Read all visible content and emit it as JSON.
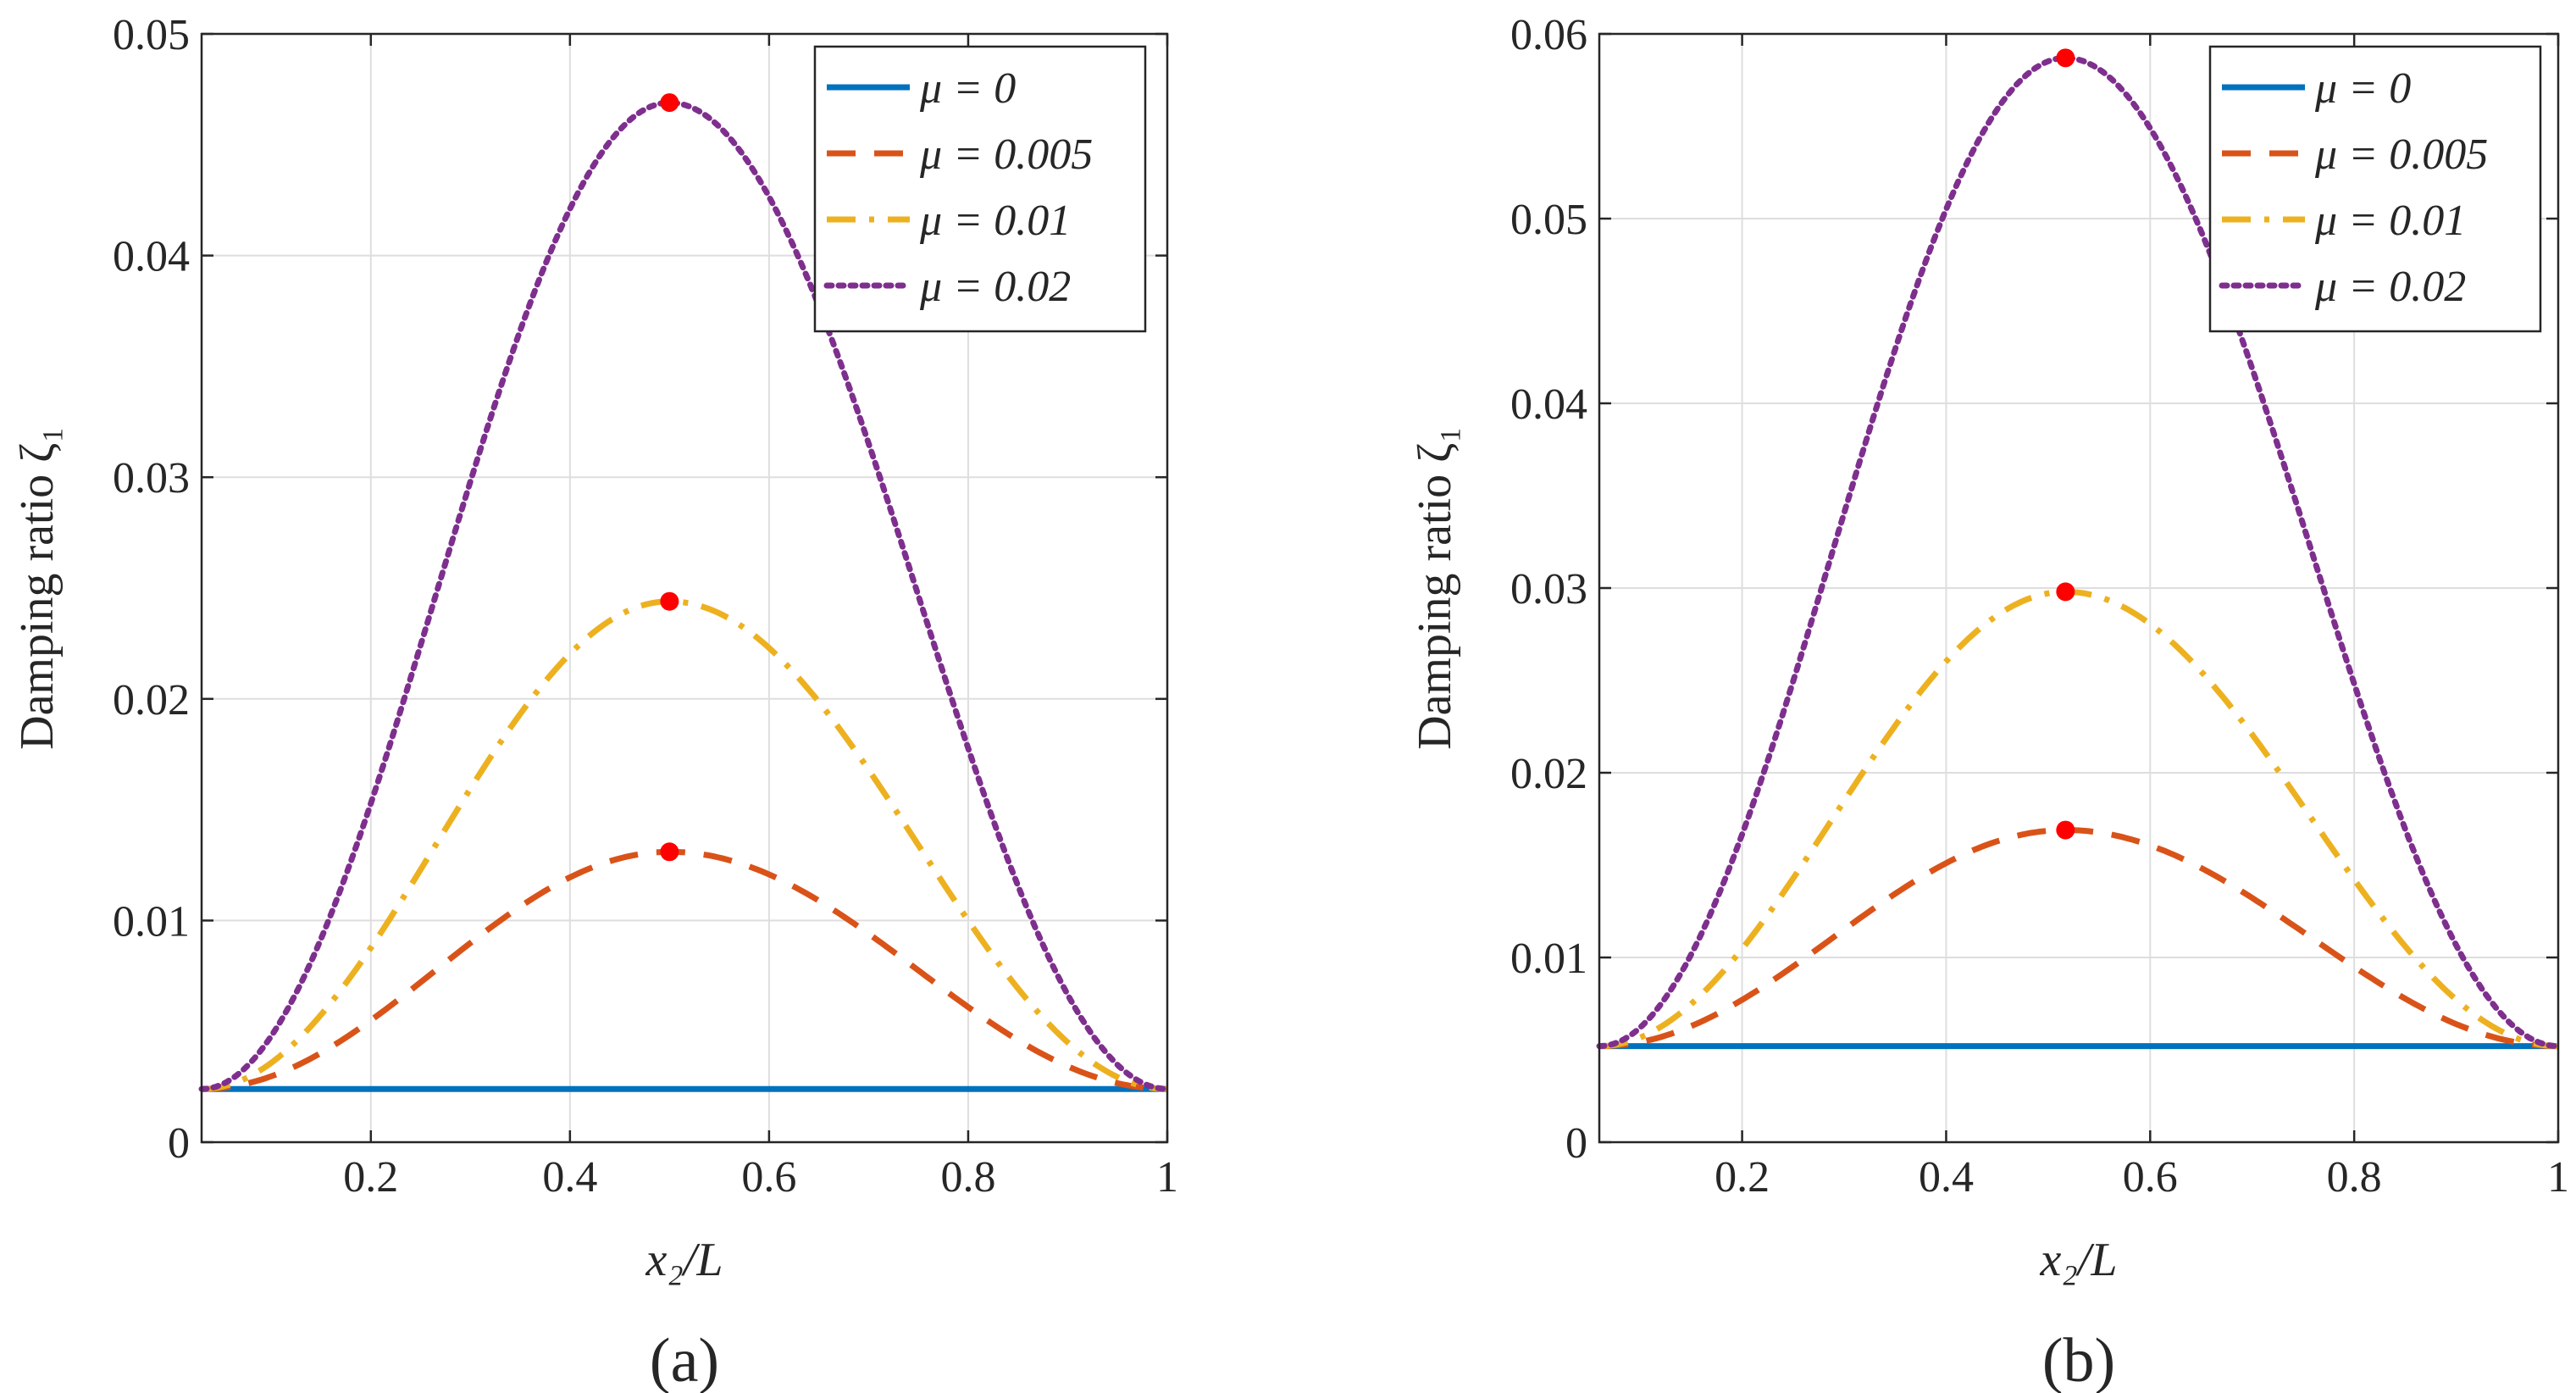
{
  "chart_data": [
    {
      "type": "line",
      "panel_label": "(a)",
      "xlabel": "x₂/L",
      "ylabel": "Damping ratio ζ₁",
      "xlim": [
        0.03,
        1.0
      ],
      "ylim": [
        0,
        0.05
      ],
      "xticks": [
        0.2,
        0.4,
        0.6,
        0.8,
        1.0
      ],
      "xtick_labels": [
        "0.2",
        "0.4",
        "0.6",
        "0.8",
        "1"
      ],
      "yticks": [
        0,
        0.01,
        0.02,
        0.03,
        0.04,
        0.05
      ],
      "ytick_labels": [
        "0",
        "0.01",
        "0.02",
        "0.03",
        "0.04",
        "0.05"
      ],
      "grid": true,
      "legend_position": "top-right",
      "baseline": 0.0024,
      "series": [
        {
          "name": "μ = 0",
          "peak_x": 0.5,
          "peak_y": 0.0024,
          "style": "solid",
          "color": "#0072BD",
          "show_marker": false
        },
        {
          "name": "μ = 0.005",
          "peak_x": 0.5,
          "peak_y": 0.0131,
          "style": "dashed",
          "color": "#D95319",
          "show_marker": true
        },
        {
          "name": "μ = 0.01",
          "peak_x": 0.5,
          "peak_y": 0.0244,
          "style": "dashdot",
          "color": "#EDB120",
          "show_marker": true
        },
        {
          "name": "μ = 0.02",
          "peak_x": 0.5,
          "peak_y": 0.0469,
          "style": "dotted",
          "color": "#7E2F8E",
          "show_marker": true
        }
      ],
      "marker_color": "#FF0000"
    },
    {
      "type": "line",
      "panel_label": "(b)",
      "xlabel": "x₂/L",
      "ylabel": "Damping ratio ζ₁",
      "xlim": [
        0.06,
        1.0
      ],
      "ylim": [
        0,
        0.06
      ],
      "xticks": [
        0.2,
        0.4,
        0.6,
        0.8,
        1.0
      ],
      "xtick_labels": [
        "0.2",
        "0.4",
        "0.6",
        "0.8",
        "1"
      ],
      "yticks": [
        0,
        0.01,
        0.02,
        0.03,
        0.04,
        0.05,
        0.06
      ],
      "ytick_labels": [
        "0",
        "0.01",
        "0.02",
        "0.03",
        "0.04",
        "0.05",
        "0.06"
      ],
      "grid": true,
      "legend_position": "top-right",
      "baseline": 0.0052,
      "series": [
        {
          "name": "μ = 0",
          "peak_x": 0.517,
          "peak_y": 0.0052,
          "style": "solid",
          "color": "#0072BD",
          "show_marker": false
        },
        {
          "name": "μ = 0.005",
          "peak_x": 0.517,
          "peak_y": 0.0169,
          "style": "dashed",
          "color": "#D95319",
          "show_marker": true
        },
        {
          "name": "μ = 0.01",
          "peak_x": 0.517,
          "peak_y": 0.0298,
          "style": "dashdot",
          "color": "#EDB120",
          "show_marker": true
        },
        {
          "name": "μ = 0.02",
          "peak_x": 0.517,
          "peak_y": 0.0587,
          "style": "dotted",
          "color": "#7E2F8E",
          "show_marker": true
        }
      ],
      "marker_color": "#FF0000"
    }
  ]
}
